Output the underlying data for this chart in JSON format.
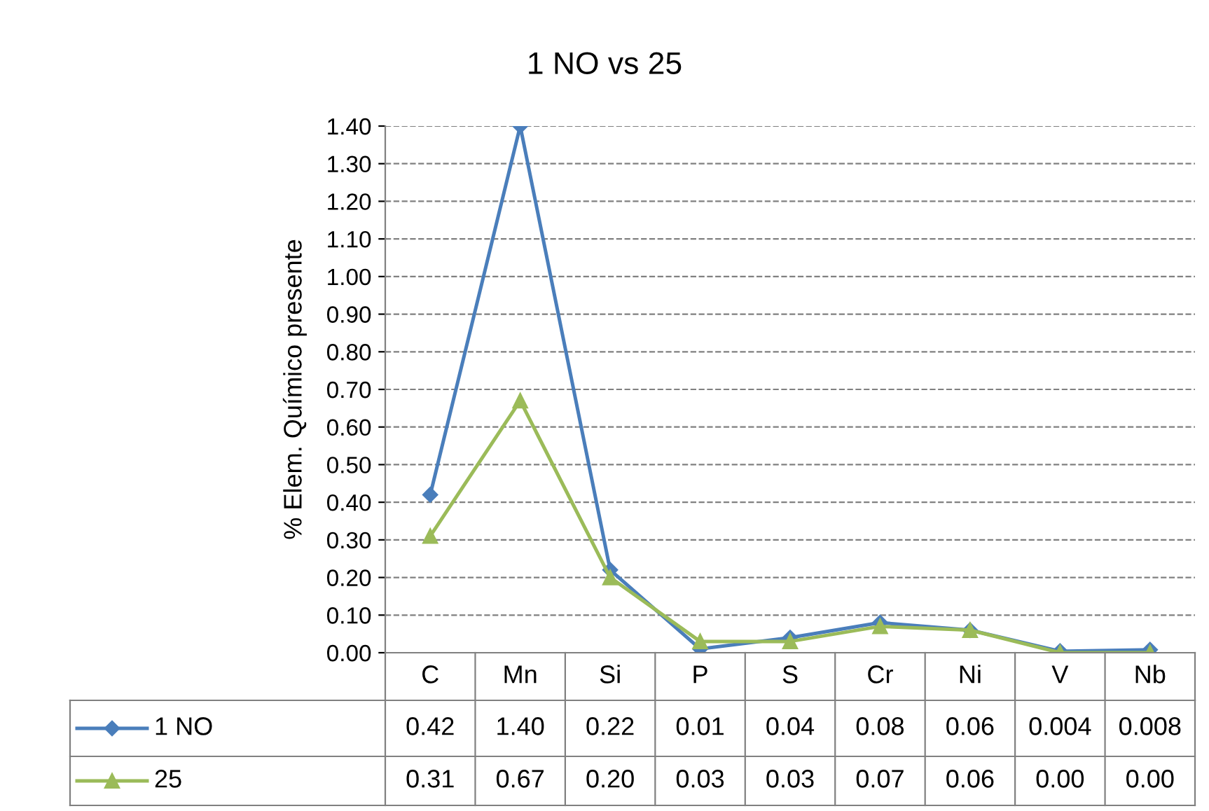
{
  "chart_data": {
    "type": "line",
    "title": "1 NO vs 25",
    "ylabel": "% Elem. Químico presente",
    "categories": [
      "C",
      "Mn",
      "Si",
      "P",
      "S",
      "Cr",
      "Ni",
      "V",
      "Nb"
    ],
    "ylim": [
      0,
      1.4
    ],
    "yticks": [
      {
        "value": 0,
        "label": "0.00"
      },
      {
        "value": 0.1,
        "label": "0.10"
      },
      {
        "value": 0.2,
        "label": "0.20"
      },
      {
        "value": 0.3,
        "label": "0.30"
      },
      {
        "value": 0.4,
        "label": "0.40"
      },
      {
        "value": 0.5,
        "label": "0.50"
      },
      {
        "value": 0.6,
        "label": "0.60"
      },
      {
        "value": 0.7,
        "label": "0.70"
      },
      {
        "value": 0.8,
        "label": "0.80"
      },
      {
        "value": 0.9,
        "label": "0.90"
      },
      {
        "value": 1.0,
        "label": "1.00"
      },
      {
        "value": 1.1,
        "label": "1.10"
      },
      {
        "value": 1.2,
        "label": "1.20"
      },
      {
        "value": 1.3,
        "label": "1.30"
      },
      {
        "value": 1.4,
        "label": "1.40"
      }
    ],
    "grid": "y",
    "legend": "bottom",
    "series": [
      {
        "name": "1 NO",
        "color": "#4a7ebb",
        "marker": "diamond",
        "values": [
          0.42,
          1.4,
          0.22,
          0.01,
          0.04,
          0.08,
          0.06,
          0.004,
          0.008
        ],
        "value_labels": [
          "0.42",
          "1.40",
          "0.22",
          "0.01",
          "0.04",
          "0.08",
          "0.06",
          "0.004",
          "0.008"
        ]
      },
      {
        "name": "25",
        "color": "#9bbb59",
        "marker": "triangle",
        "values": [
          0.31,
          0.67,
          0.2,
          0.03,
          0.03,
          0.07,
          0.06,
          0.0,
          0.0
        ],
        "value_labels": [
          "0.31",
          "0.67",
          "0.20",
          "0.03",
          "0.03",
          "0.07",
          "0.06",
          "0.00",
          "0.00"
        ]
      }
    ]
  }
}
